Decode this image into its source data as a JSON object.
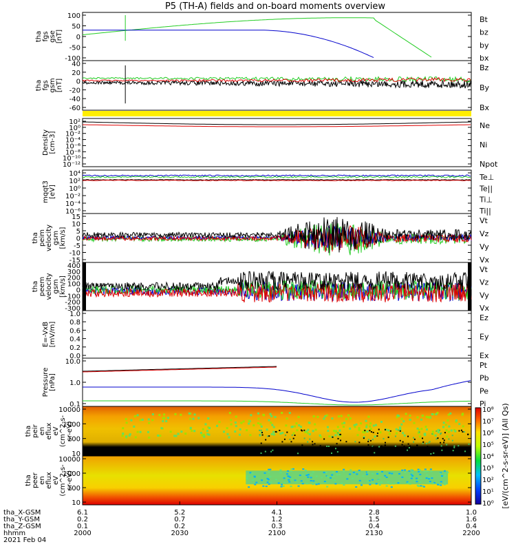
{
  "title": "P5 (TH-A) fields and on-board moments overview",
  "colors": {
    "black": "#000000",
    "red": "#dd0000",
    "green": "#22cc22",
    "blue": "#0000cc",
    "yellow": "#ffee00"
  },
  "panels": [
    {
      "id": "fgs-gse",
      "ylabel": [
        "tha",
        "fgs",
        "gse",
        "[nT]"
      ],
      "ticks": [
        "100",
        "50",
        "0",
        "-50",
        "-100"
      ],
      "legend": [
        [
          "Bt",
          "black"
        ],
        [
          "bz",
          "red"
        ],
        [
          "by",
          "green"
        ],
        [
          "bx",
          "blue"
        ]
      ]
    },
    {
      "id": "fgs-gsm",
      "ylabel": [
        "tha",
        "fgs",
        "gsm",
        "[nT]"
      ],
      "ticks": [
        "40",
        "20",
        "0",
        "-20",
        "-40",
        "-60"
      ],
      "legend": [
        [
          "Bz",
          "red"
        ],
        [
          "By",
          "green"
        ],
        [
          "Bx",
          "black"
        ]
      ]
    },
    {
      "id": "density",
      "ylabel": [
        "Density",
        "[cm-3]"
      ],
      "ticks": [
        "10²",
        "10⁰",
        "10⁻²",
        "10⁻⁴",
        "10⁻⁶",
        "10⁻⁸",
        "10⁻¹⁰",
        "10⁻¹²"
      ],
      "legend": [
        [
          "Ne",
          "red"
        ],
        [
          "Ni",
          "black"
        ],
        [
          "Npot",
          "blue"
        ]
      ]
    },
    {
      "id": "temp",
      "ylabel": [
        "mqqt3",
        "[eV]"
      ],
      "ticks": [
        "10⁴",
        "10²",
        "10⁰",
        "10⁻²",
        "10⁻⁴",
        "10⁻⁶"
      ],
      "legend": [
        [
          "Te⊥",
          "red"
        ],
        [
          "Te||",
          "black"
        ],
        [
          "Ti⊥",
          "blue"
        ],
        [
          "Ti||",
          "green"
        ]
      ]
    },
    {
      "id": "peim",
      "ylabel": [
        "tha",
        "peim",
        "velocity",
        "gsm",
        "[km/s]"
      ],
      "ticks": [
        "15",
        "10",
        "5",
        "0",
        "-5",
        "-10",
        "-15"
      ],
      "legend": [
        [
          "Vt",
          "black"
        ],
        [
          "Vz",
          "red"
        ],
        [
          "Vy",
          "green"
        ],
        [
          "Vx",
          "blue"
        ]
      ]
    },
    {
      "id": "peem",
      "ylabel": [
        "tha",
        "peem",
        "velocity",
        "gsm",
        "[km/s]"
      ],
      "ticks": [
        "400",
        "300",
        "200",
        "100",
        "0",
        "-100",
        "-200",
        "-300"
      ],
      "legend": [
        [
          "Vt",
          "black"
        ],
        [
          "Vz",
          "red"
        ],
        [
          "Vy",
          "green"
        ],
        [
          "Vx",
          "blue"
        ]
      ]
    },
    {
      "id": "efield",
      "ylabel": [
        "E=-VxB",
        "[mV/m]"
      ],
      "ticks": [
        "1.0",
        "0.8",
        "0.6",
        "0.4",
        "0.2",
        "0.0"
      ],
      "legend": [
        [
          "Ez",
          "red"
        ],
        [
          "Ey",
          "green"
        ],
        [
          "Ex",
          "blue"
        ]
      ]
    },
    {
      "id": "pressure",
      "ylabel": [
        "Pressure",
        "[nPa]"
      ],
      "ticks": [
        "10.0",
        "1.0",
        "0.1"
      ],
      "legend": [
        [
          "Pt",
          "black"
        ],
        [
          "Pb",
          "red"
        ],
        [
          "Pe",
          "green"
        ],
        [
          "Pi",
          "blue"
        ]
      ]
    },
    {
      "id": "peir",
      "ylabel": [
        "tha",
        "peir",
        "en",
        "eflux",
        "eV",
        "(cm^2-s-",
        "sr-eV)"
      ],
      "ticks": [
        "10000",
        "1000",
        "100",
        "10"
      ],
      "legend": []
    },
    {
      "id": "peer",
      "ylabel": [
        "tha",
        "peer",
        "en",
        "eflux",
        "eV",
        "(cm^2-s-",
        "sr-eV)"
      ],
      "ticks": [
        "10000",
        "1000",
        "100",
        "10"
      ],
      "legend": []
    }
  ],
  "colorbar": {
    "label": "[eV/(cm^2-s-sr-eV)] (All Qs)",
    "ticks": [
      "10⁸",
      "10⁷",
      "10⁶",
      "10⁵",
      "10⁴",
      "10³",
      "10²",
      "10¹",
      "10⁰"
    ]
  },
  "xaxis": {
    "rows": [
      {
        "label": "tha_X-GSM",
        "values": [
          "6.1",
          "5.2",
          "4.1",
          "2.8",
          "1.0"
        ]
      },
      {
        "label": "tha_Y-GSM",
        "values": [
          "0.2",
          "0.7",
          "1.2",
          "1.5",
          "1.6"
        ]
      },
      {
        "label": "tha_Z-GSM",
        "values": [
          "0.1",
          "0.2",
          "0.3",
          "0.4",
          "0.4"
        ]
      },
      {
        "label": "hhmm",
        "values": [
          "2000",
          "2030",
          "2100",
          "2130",
          "2200"
        ]
      }
    ],
    "date": "2021 Feb 04"
  },
  "chart_data": [
    {
      "type": "line",
      "title": "P5 (TH-A) fields and on-board moments overview",
      "xlabel": "hhmm",
      "ylabel": "tha fgs gse [nT]",
      "x": [
        "2000",
        "2030",
        "2100",
        "2130",
        "2200"
      ],
      "ylim": [
        -100,
        100
      ],
      "series": [
        {
          "name": "bx",
          "values": [
            28,
            30,
            12,
            -45,
            null
          ]
        },
        {
          "name": "by",
          "values": [
            5,
            25,
            60,
            80,
            -100
          ]
        },
        {
          "name": "bz",
          "values": [
            30,
            33,
            35,
            null,
            null
          ]
        },
        {
          "name": "Bt",
          "values": [
            30,
            33,
            null,
            null,
            null
          ]
        }
      ]
    },
    {
      "type": "line",
      "xlabel": "hhmm",
      "ylabel": "tha fgs gsm [nT]",
      "x": [
        "2000",
        "2030",
        "2100",
        "2130",
        "2200"
      ],
      "ylim": [
        -70,
        40
      ],
      "series": [
        {
          "name": "Bx",
          "values": [
            -5,
            -5,
            -8,
            -10,
            -8
          ]
        },
        {
          "name": "By",
          "values": [
            3,
            3,
            2,
            -3,
            -2
          ]
        },
        {
          "name": "Bz",
          "values": [
            -3,
            -3,
            -4,
            3,
            4
          ]
        }
      ]
    },
    {
      "type": "line",
      "xlabel": "hhmm",
      "ylabel": "Density [cm-3]",
      "x": [
        "2000",
        "2030",
        "2100",
        "2130",
        "2200"
      ],
      "ylim": [
        1e-13,
        1000
      ],
      "series": [
        {
          "name": "Ne",
          "values": [
            8,
            9,
            3,
            1.5,
            8
          ]
        },
        {
          "name": "Ni",
          "values": [
            20,
            25,
            8,
            3,
            30
          ]
        },
        {
          "name": "Npot",
          "values": [
            20,
            25,
            8,
            3,
            30
          ]
        }
      ]
    },
    {
      "type": "line",
      "xlabel": "hhmm",
      "ylabel": "mqqt3 [eV]",
      "x": [
        "2000",
        "2030",
        "2100",
        "2130",
        "2200"
      ],
      "ylim": [
        1e-07,
        10000
      ],
      "series": [
        {
          "name": "Te⊥",
          "values": [
            200,
            200,
            300,
            400,
            300
          ]
        },
        {
          "name": "Te||",
          "values": [
            150,
            150,
            200,
            300,
            200
          ]
        },
        {
          "name": "Ti⊥",
          "values": [
            1500,
            1500,
            1500,
            1500,
            1500
          ]
        },
        {
          "name": "Ti||",
          "values": [
            1200,
            1200,
            1200,
            1200,
            1200
          ]
        }
      ]
    },
    {
      "type": "line",
      "xlabel": "hhmm",
      "ylabel": "tha peim velocity gsm [km/s]",
      "x": [
        "2000",
        "2030",
        "2100",
        "2130",
        "2200"
      ],
      "ylim": [
        -15,
        15
      ],
      "series": [
        {
          "name": "Vt",
          "values": [
            1,
            1,
            2,
            8,
            2
          ]
        },
        {
          "name": "Vz",
          "values": [
            0,
            0,
            0,
            -2,
            0
          ]
        },
        {
          "name": "Vy",
          "values": [
            0,
            0,
            0,
            -4,
            -1
          ]
        },
        {
          "name": "Vx",
          "values": [
            0,
            0,
            0,
            -1,
            1
          ]
        }
      ]
    },
    {
      "type": "line",
      "xlabel": "hhmm",
      "ylabel": "tha peem velocity gsm [km/s]",
      "x": [
        "2000",
        "2030",
        "2100",
        "2130",
        "2200"
      ],
      "ylim": [
        -300,
        400
      ],
      "series": [
        {
          "name": "Vt",
          "values": [
            30,
            30,
            80,
            100,
            120
          ]
        },
        {
          "name": "Vz",
          "values": [
            0,
            0,
            -50,
            -30,
            -20
          ]
        },
        {
          "name": "Vy",
          "values": [
            0,
            0,
            50,
            60,
            50
          ]
        },
        {
          "name": "Vx",
          "values": [
            0,
            0,
            -20,
            -30,
            -10
          ]
        }
      ]
    },
    {
      "type": "line",
      "xlabel": "hhmm",
      "ylabel": "E=-VxB [mV/m]",
      "x": [
        "2000",
        "2030",
        "2100",
        "2130",
        "2200"
      ],
      "ylim": [
        0,
        1
      ],
      "series": []
    },
    {
      "type": "line",
      "xlabel": "hhmm",
      "ylabel": "Pressure [nPa]",
      "x": [
        "2000",
        "2030",
        "2100",
        "2130",
        "2200"
      ],
      "ylim": [
        0.01,
        100
      ],
      "series": [
        {
          "name": "Pt",
          "values": [
            7,
            12,
            30,
            null,
            null
          ]
        },
        {
          "name": "Pb",
          "values": [
            7,
            12,
            30,
            null,
            null
          ]
        },
        {
          "name": "Pe",
          "values": [
            0.045,
            0.04,
            0.03,
            0.012,
            0.035
          ]
        },
        {
          "name": "Pi",
          "values": [
            0.45,
            0.5,
            0.3,
            0.04,
            0.6
          ]
        }
      ]
    },
    {
      "type": "heatmap",
      "xlabel": "hhmm",
      "ylabel": "tha peir en eflux eV (cm^2-s- sr-eV)",
      "x": [
        "2000",
        "2030",
        "2100",
        "2130",
        "2200"
      ],
      "ylim": [
        5,
        25000
      ],
      "colorbar": [
        1,
        100000000.0
      ]
    },
    {
      "type": "heatmap",
      "xlabel": "hhmm",
      "ylabel": "tha peer en eflux eV (cm^2-s- sr-eV)",
      "x": [
        "2000",
        "2030",
        "2100",
        "2130",
        "2200"
      ],
      "ylim": [
        5,
        25000
      ],
      "colorbar": [
        1,
        100000000.0
      ]
    }
  ]
}
